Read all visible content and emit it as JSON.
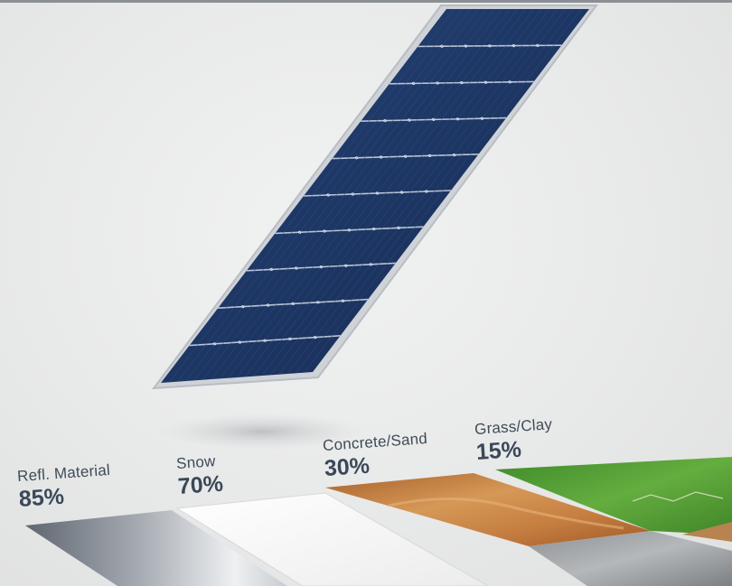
{
  "surfaces": [
    {
      "name": "Refl. Material",
      "albedo": "85%"
    },
    {
      "name": "Snow",
      "albedo": "70%"
    },
    {
      "name": "Concrete/Sand",
      "albedo": "30%"
    },
    {
      "name": "Grass/Clay",
      "albedo": "15%"
    }
  ],
  "colors": {
    "background": "#e9eaea",
    "panel_cells": "#1d3560",
    "panel_frame": "#c9ced3",
    "label_text": "#3a4858",
    "sand": "#c07a3e",
    "grass": "#4f9a35",
    "snow": "#f7f7f7",
    "reflective": "#8a9098"
  },
  "icons": {
    "panel": "solar-panel-illustration",
    "ground": "ground-surface-strips"
  }
}
